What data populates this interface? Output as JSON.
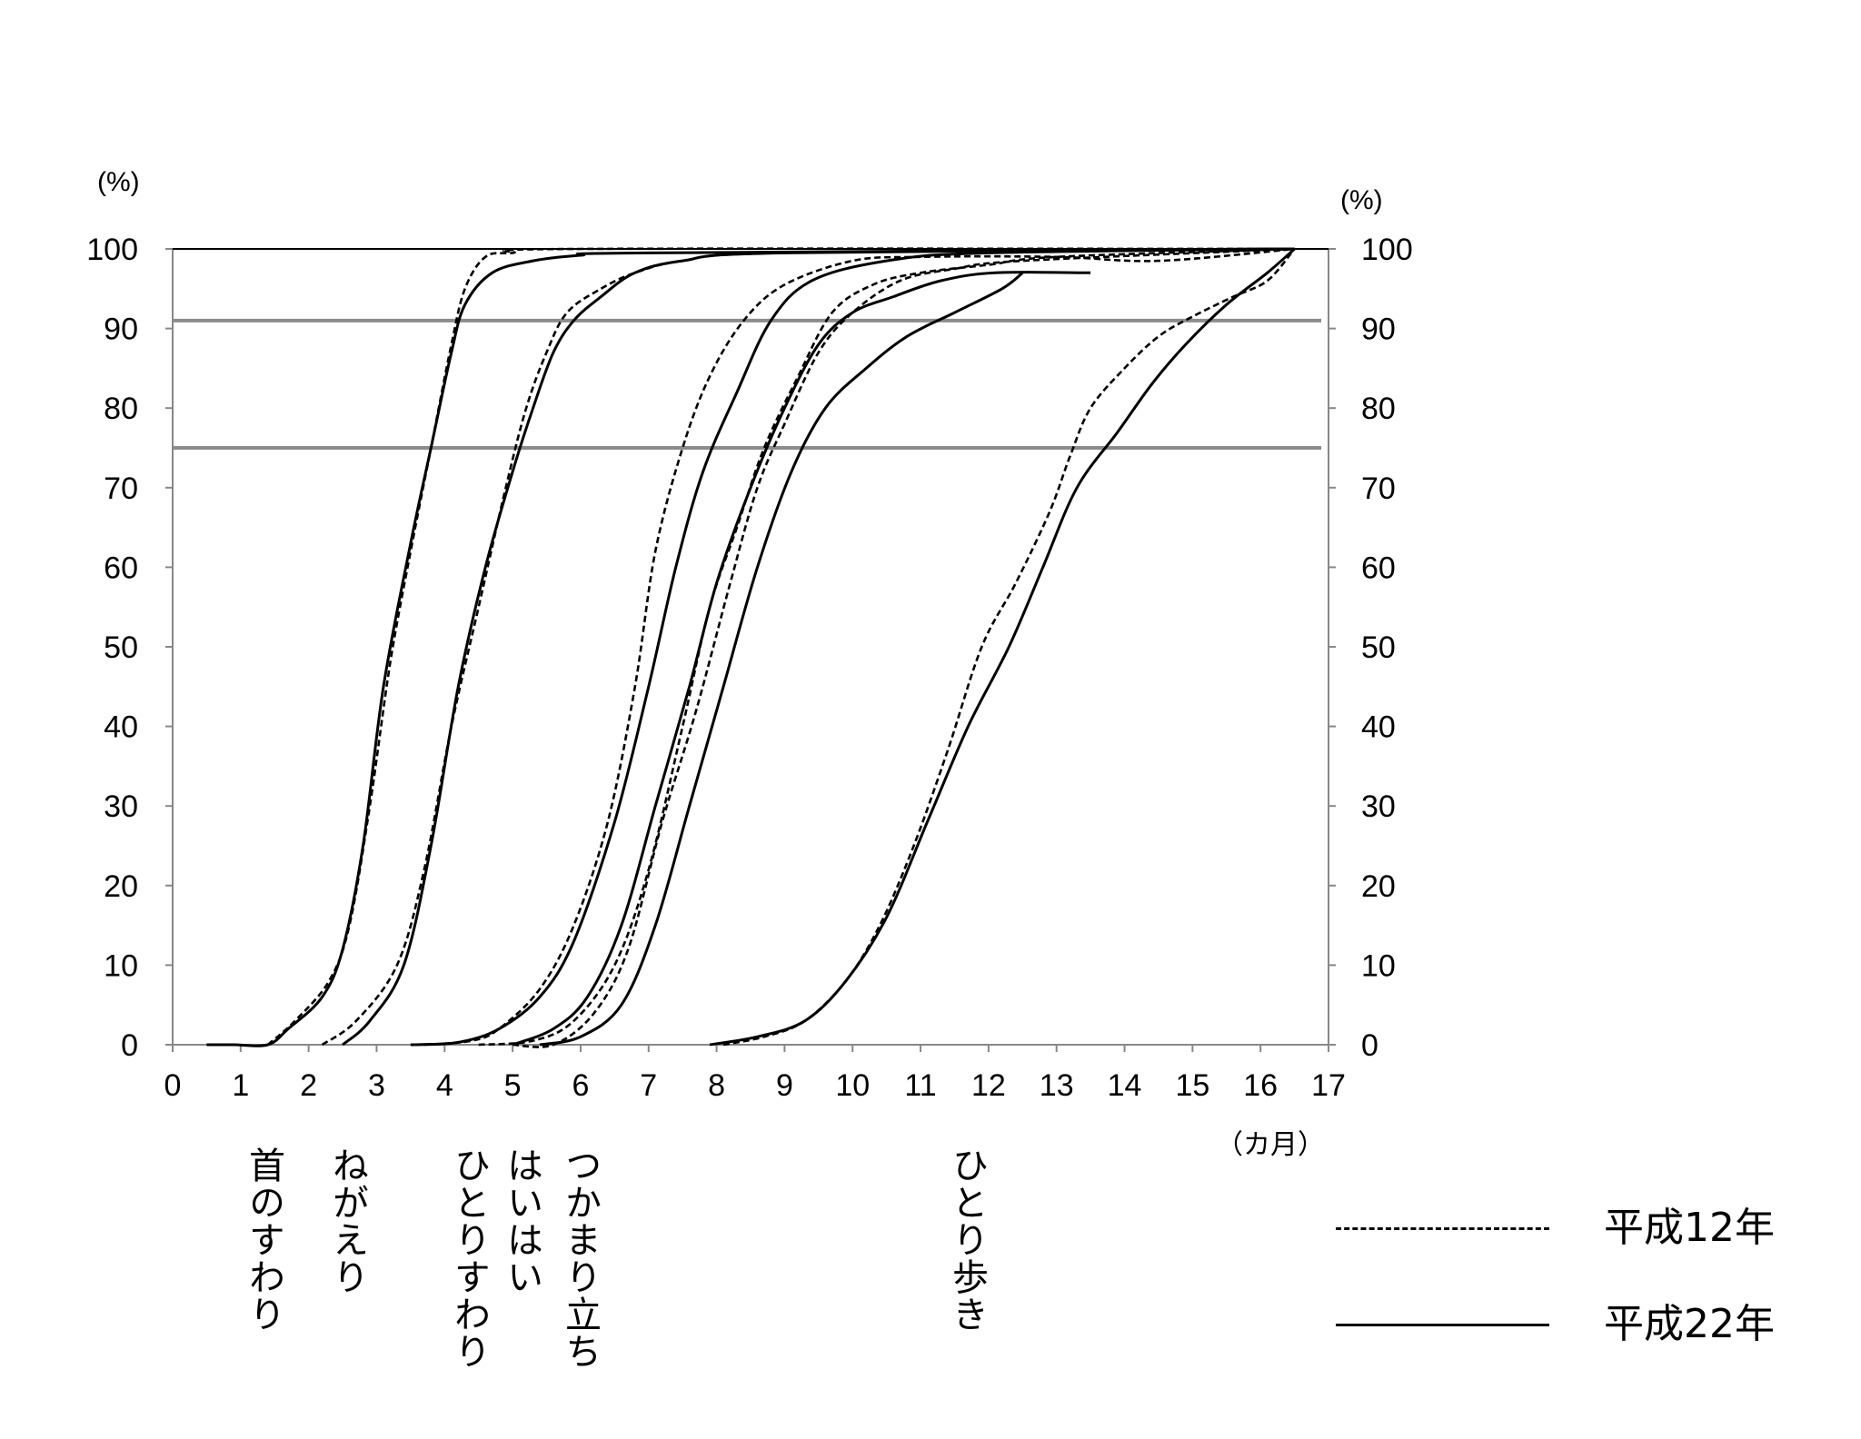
{
  "chart_data": {
    "type": "line",
    "title": "",
    "xlabel": "（カ月）",
    "ylabel_left": "(%)",
    "ylabel_right": "(%)",
    "xlim": [
      0,
      17
    ],
    "ylim": [
      0,
      100
    ],
    "x_ticks": [
      0,
      1,
      2,
      3,
      4,
      5,
      6,
      7,
      8,
      9,
      10,
      11,
      12,
      13,
      14,
      15,
      16,
      17
    ],
    "y_ticks": [
      0,
      10,
      20,
      30,
      40,
      50,
      60,
      70,
      80,
      90,
      100
    ],
    "reference_lines": [
      91,
      75
    ],
    "grid": false,
    "legend_position": "bottom-right",
    "legend": [
      {
        "label": "平成12年",
        "style": "dashed"
      },
      {
        "label": "平成22年",
        "style": "solid"
      }
    ],
    "milestones": [
      "首のすわり",
      "ねがえり",
      "ひとりすわり",
      "はいはい",
      "つかまり立ち",
      "ひとり歩き"
    ],
    "series": [
      {
        "milestone": "首のすわり",
        "legend": "平成12年",
        "style": "dashed",
        "points": [
          [
            1.4,
            0
          ],
          [
            1.8,
            3
          ],
          [
            2.3,
            8
          ],
          [
            2.6,
            15
          ],
          [
            2.9,
            30
          ],
          [
            3.2,
            48
          ],
          [
            3.5,
            62
          ],
          [
            3.8,
            75
          ],
          [
            4.1,
            88
          ],
          [
            4.3,
            95
          ],
          [
            4.6,
            99
          ],
          [
            5,
            99.5
          ],
          [
            6,
            100
          ],
          [
            16.5,
            100
          ]
        ]
      },
      {
        "milestone": "首のすわり",
        "legend": "平成22年",
        "style": "solid",
        "points": [
          [
            0.5,
            0
          ],
          [
            0.9,
            0
          ],
          [
            1.4,
            0
          ],
          [
            1.7,
            2
          ],
          [
            2.2,
            6
          ],
          [
            2.5,
            12
          ],
          [
            2.8,
            25
          ],
          [
            3.1,
            45
          ],
          [
            3.5,
            63
          ],
          [
            3.8,
            75
          ],
          [
            4.1,
            87
          ],
          [
            4.3,
            93
          ],
          [
            4.7,
            97
          ],
          [
            5.3,
            98.5
          ],
          [
            6,
            99.2
          ],
          [
            7,
            99.5
          ],
          [
            16.5,
            100
          ]
        ]
      },
      {
        "milestone": "ねがえり",
        "legend": "平成12年",
        "style": "dashed",
        "points": [
          [
            2.2,
            0
          ],
          [
            2.7,
            3
          ],
          [
            3.3,
            10
          ],
          [
            3.7,
            22
          ],
          [
            4.1,
            40
          ],
          [
            4.5,
            55
          ],
          [
            4.9,
            70
          ],
          [
            5.2,
            80
          ],
          [
            5.5,
            87
          ],
          [
            5.8,
            92
          ],
          [
            6.3,
            95
          ],
          [
            6.8,
            97
          ],
          [
            7.5,
            98.5
          ],
          [
            9,
            99.5
          ],
          [
            16.5,
            100
          ]
        ]
      },
      {
        "milestone": "ねがえり",
        "legend": "平成22年",
        "style": "solid",
        "points": [
          [
            2.5,
            0
          ],
          [
            2.9,
            3
          ],
          [
            3.4,
            10
          ],
          [
            3.8,
            25
          ],
          [
            4.2,
            45
          ],
          [
            4.6,
            60
          ],
          [
            5,
            72
          ],
          [
            5.3,
            80
          ],
          [
            5.6,
            87
          ],
          [
            5.9,
            91
          ],
          [
            6.3,
            94
          ],
          [
            6.8,
            97
          ],
          [
            7.5,
            98.5
          ],
          [
            9,
            99.5
          ],
          [
            16.5,
            100
          ]
        ]
      },
      {
        "milestone": "ひとりすわり",
        "legend": "平成12年",
        "style": "dashed",
        "points": [
          [
            3.7,
            0
          ],
          [
            4.4,
            0.5
          ],
          [
            4.8,
            2
          ],
          [
            5.4,
            7
          ],
          [
            5.9,
            15
          ],
          [
            6.4,
            28
          ],
          [
            6.8,
            45
          ],
          [
            7.1,
            62
          ],
          [
            7.5,
            75
          ],
          [
            7.9,
            84
          ],
          [
            8.4,
            91
          ],
          [
            9,
            95.5
          ],
          [
            10,
            98.5
          ],
          [
            11,
            99
          ],
          [
            13,
            99
          ],
          [
            14.5,
            98.5
          ],
          [
            16.5,
            100
          ]
        ]
      },
      {
        "milestone": "ひとりすわり",
        "legend": "平成22年",
        "style": "solid",
        "points": [
          [
            3.5,
            0
          ],
          [
            4.2,
            0.3
          ],
          [
            4.8,
            2
          ],
          [
            5.4,
            6
          ],
          [
            5.9,
            13
          ],
          [
            6.5,
            28
          ],
          [
            7,
            45
          ],
          [
            7.4,
            60
          ],
          [
            7.8,
            72
          ],
          [
            8.3,
            82
          ],
          [
            8.8,
            91
          ],
          [
            9.4,
            96
          ],
          [
            10.5,
            98.5
          ],
          [
            12,
            99.5
          ],
          [
            16.5,
            100
          ]
        ]
      },
      {
        "milestone": "はいはい",
        "legend": "平成12年",
        "style": "dashed",
        "points": [
          [
            4.5,
            0
          ],
          [
            5.3,
            0.5
          ],
          [
            5.9,
            3
          ],
          [
            6.5,
            10
          ],
          [
            7,
            22
          ],
          [
            7.5,
            40
          ],
          [
            7.9,
            55
          ],
          [
            8.3,
            65
          ],
          [
            8.7,
            75
          ],
          [
            9.2,
            84
          ],
          [
            9.7,
            92
          ],
          [
            10.3,
            95.5
          ],
          [
            11,
            97
          ],
          [
            12,
            98
          ],
          [
            13,
            99
          ],
          [
            16.5,
            100
          ]
        ]
      },
      {
        "milestone": "はいはい",
        "legend": "平成22年",
        "style": "solid",
        "points": [
          [
            5,
            0
          ],
          [
            5.6,
            2
          ],
          [
            6.1,
            6
          ],
          [
            6.6,
            15
          ],
          [
            7.1,
            30
          ],
          [
            7.6,
            45
          ],
          [
            8,
            58
          ],
          [
            8.5,
            70
          ],
          [
            9,
            80
          ],
          [
            9.5,
            88
          ],
          [
            10,
            92
          ],
          [
            10.6,
            94
          ],
          [
            11.3,
            96
          ],
          [
            12.1,
            97
          ],
          [
            13.5,
            97
          ]
        ]
      },
      {
        "milestone": "つかまり立ち",
        "legend": "平成12年",
        "style": "dashed",
        "points": [
          [
            5,
            0
          ],
          [
            5.6,
            0
          ],
          [
            6.2,
            4
          ],
          [
            6.7,
            12
          ],
          [
            7.2,
            28
          ],
          [
            7.7,
            42
          ],
          [
            8.2,
            58
          ],
          [
            8.6,
            70
          ],
          [
            9,
            78
          ],
          [
            9.5,
            87
          ],
          [
            10,
            92
          ],
          [
            10.7,
            96
          ],
          [
            11.5,
            97.5
          ],
          [
            12.5,
            98.5
          ],
          [
            16.5,
            100
          ]
        ]
      },
      {
        "milestone": "つかまり立ち",
        "legend": "平成22年",
        "style": "solid",
        "points": [
          [
            5.4,
            0
          ],
          [
            6,
            1
          ],
          [
            6.6,
            5
          ],
          [
            7.1,
            15
          ],
          [
            7.6,
            30
          ],
          [
            8.1,
            45
          ],
          [
            8.6,
            60
          ],
          [
            9.1,
            72
          ],
          [
            9.6,
            80
          ],
          [
            10.2,
            85
          ],
          [
            10.8,
            89
          ],
          [
            11.5,
            92
          ],
          [
            12.2,
            95
          ],
          [
            12.5,
            97
          ]
        ]
      },
      {
        "milestone": "ひとり歩き",
        "legend": "平成12年",
        "style": "dashed",
        "points": [
          [
            8.1,
            0
          ],
          [
            8.7,
            1
          ],
          [
            9.3,
            3
          ],
          [
            9.9,
            8
          ],
          [
            10.4,
            15
          ],
          [
            10.9,
            25
          ],
          [
            11.4,
            37
          ],
          [
            11.9,
            50
          ],
          [
            12.4,
            58
          ],
          [
            12.9,
            67
          ],
          [
            13.2,
            74
          ],
          [
            13.5,
            80
          ],
          [
            14,
            85
          ],
          [
            14.5,
            89
          ],
          [
            15,
            91.5
          ],
          [
            15.6,
            94
          ],
          [
            16.1,
            96
          ],
          [
            16.5,
            100
          ]
        ]
      },
      {
        "milestone": "ひとり歩き",
        "legend": "平成22年",
        "style": "solid",
        "points": [
          [
            7.9,
            0
          ],
          [
            8.6,
            1
          ],
          [
            9.3,
            3
          ],
          [
            9.9,
            8
          ],
          [
            10.5,
            16
          ],
          [
            11.1,
            28
          ],
          [
            11.7,
            40
          ],
          [
            12.3,
            50
          ],
          [
            12.8,
            60
          ],
          [
            13.3,
            70
          ],
          [
            13.9,
            77
          ],
          [
            14.4,
            83
          ],
          [
            14.9,
            88
          ],
          [
            15.5,
            93
          ],
          [
            16.1,
            97
          ],
          [
            16.5,
            100
          ]
        ]
      }
    ]
  }
}
